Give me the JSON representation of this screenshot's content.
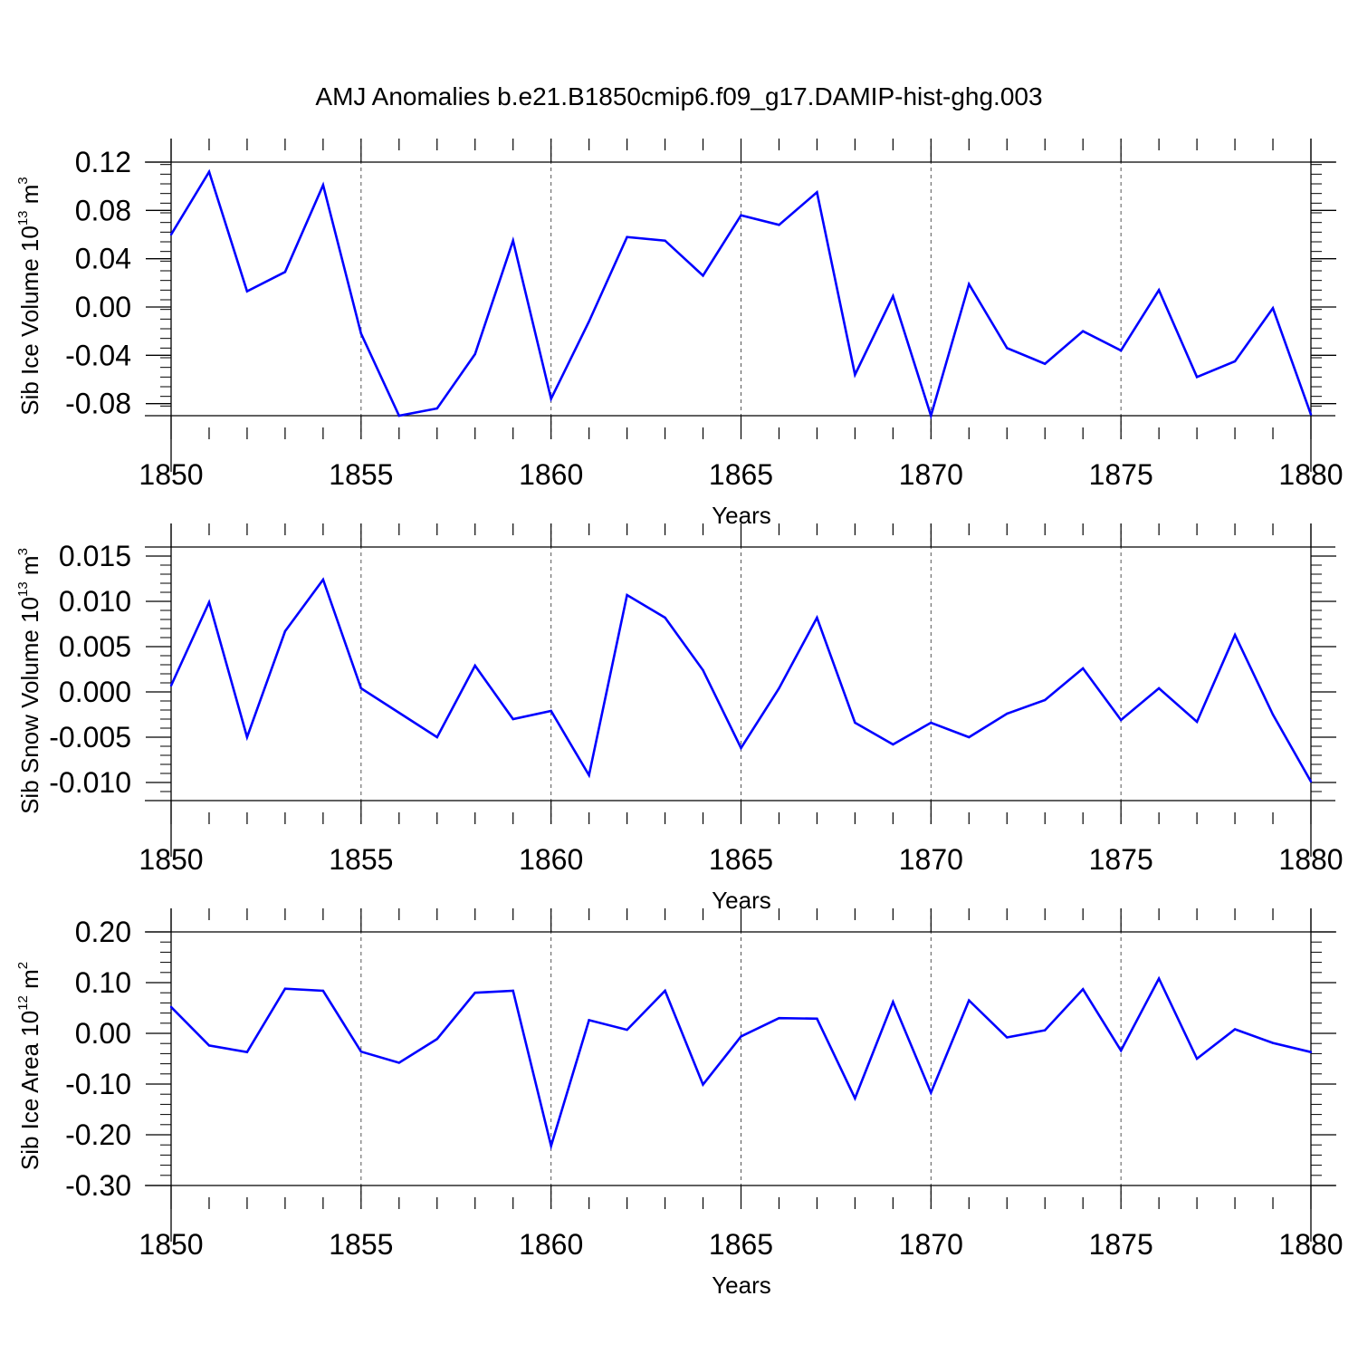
{
  "title": "AMJ Anomalies b.e21.B1850cmip6.f09_g17.DAMIP-hist-ghg.003",
  "line_color": "#0000ff",
  "chart_data": [
    {
      "type": "line",
      "ylabel": {
        "text": "Sib Ice Volume 10",
        "exp": "13",
        "unit": " m",
        "unit_exp": "3"
      },
      "xlabel": "Years",
      "xlim": [
        1850,
        1880
      ],
      "ylim": [
        -0.09,
        0.12
      ],
      "yticks": [
        "0.12",
        "0.08",
        "0.04",
        "0.00",
        "-0.04",
        "-0.08"
      ],
      "ytick_values": [
        0.12,
        0.08,
        0.04,
        0.0,
        -0.04,
        -0.08
      ],
      "xticks": [
        "1850",
        "1855",
        "1860",
        "1865",
        "1870",
        "1875",
        "1880"
      ],
      "xtick_values": [
        1850,
        1855,
        1860,
        1865,
        1870,
        1875,
        1880
      ],
      "x": [
        1850,
        1851,
        1852,
        1853,
        1854,
        1855,
        1856,
        1857,
        1858,
        1859,
        1860,
        1861,
        1862,
        1863,
        1864,
        1865,
        1866,
        1867,
        1868,
        1869,
        1870,
        1871,
        1872,
        1873,
        1874,
        1875,
        1876,
        1877,
        1878,
        1879,
        1880
      ],
      "values": [
        0.06,
        0.112,
        0.013,
        0.029,
        0.101,
        -0.022,
        -0.09,
        -0.084,
        -0.039,
        0.055,
        -0.076,
        -0.012,
        0.058,
        0.055,
        0.026,
        0.076,
        0.068,
        0.095,
        -0.056,
        0.009,
        -0.09,
        0.019,
        -0.034,
        -0.047,
        -0.02,
        -0.036,
        0.014,
        -0.058,
        -0.045,
        -0.001,
        -0.089
      ]
    },
    {
      "type": "line",
      "ylabel": {
        "text": "Sib Snow Volume 10",
        "exp": "13",
        "unit": " m",
        "unit_exp": "3"
      },
      "xlabel": "Years",
      "xlim": [
        1850,
        1880
      ],
      "ylim": [
        -0.012,
        0.016
      ],
      "yticks": [
        "0.015",
        "0.010",
        "0.005",
        "0.000",
        "-0.005",
        "-0.010"
      ],
      "ytick_values": [
        0.015,
        0.01,
        0.005,
        0.0,
        -0.005,
        -0.01
      ],
      "xticks": [
        "1850",
        "1855",
        "1860",
        "1865",
        "1870",
        "1875",
        "1880"
      ],
      "xtick_values": [
        1850,
        1855,
        1860,
        1865,
        1870,
        1875,
        1880
      ],
      "x": [
        1850,
        1851,
        1852,
        1853,
        1854,
        1855,
        1856,
        1857,
        1858,
        1859,
        1860,
        1861,
        1862,
        1863,
        1864,
        1865,
        1866,
        1867,
        1868,
        1869,
        1870,
        1871,
        1872,
        1873,
        1874,
        1875,
        1876,
        1877,
        1878,
        1879,
        1880
      ],
      "values": [
        0.0007,
        0.0099,
        -0.005,
        0.0067,
        0.0124,
        0.0004,
        -0.0023,
        -0.005,
        0.0029,
        -0.003,
        -0.0021,
        -0.0092,
        0.0107,
        0.0082,
        0.0024,
        -0.0062,
        0.0004,
        0.0082,
        -0.0034,
        -0.0058,
        -0.0034,
        -0.005,
        -0.0024,
        -0.0009,
        0.0026,
        -0.0031,
        0.0004,
        -0.0033,
        0.0063,
        -0.0025,
        -0.0099
      ]
    },
    {
      "type": "line",
      "ylabel": {
        "text": "Sib Ice Area 10",
        "exp": "12",
        "unit": " m",
        "unit_exp": "2"
      },
      "xlabel": "Years",
      "xlim": [
        1850,
        1880
      ],
      "ylim": [
        -0.3,
        0.2
      ],
      "yticks": [
        "0.20",
        "0.10",
        "0.00",
        "-0.10",
        "-0.20",
        "-0.30"
      ],
      "ytick_values": [
        0.2,
        0.1,
        0.0,
        -0.1,
        -0.2,
        -0.3
      ],
      "xticks": [
        "1850",
        "1855",
        "1860",
        "1865",
        "1870",
        "1875",
        "1880"
      ],
      "xtick_values": [
        1850,
        1855,
        1860,
        1865,
        1870,
        1875,
        1880
      ],
      "x": [
        1850,
        1851,
        1852,
        1853,
        1854,
        1855,
        1856,
        1857,
        1858,
        1859,
        1860,
        1861,
        1862,
        1863,
        1864,
        1865,
        1866,
        1867,
        1868,
        1869,
        1870,
        1871,
        1872,
        1873,
        1874,
        1875,
        1876,
        1877,
        1878,
        1879,
        1880
      ],
      "values": [
        0.052,
        -0.024,
        -0.037,
        0.088,
        0.084,
        -0.036,
        -0.058,
        -0.011,
        0.08,
        0.084,
        -0.222,
        0.026,
        0.007,
        0.084,
        -0.101,
        -0.006,
        0.03,
        0.029,
        -0.128,
        0.062,
        -0.117,
        0.065,
        -0.008,
        0.006,
        0.087,
        -0.034,
        0.108,
        -0.05,
        0.008,
        -0.019,
        -0.037
      ]
    }
  ]
}
